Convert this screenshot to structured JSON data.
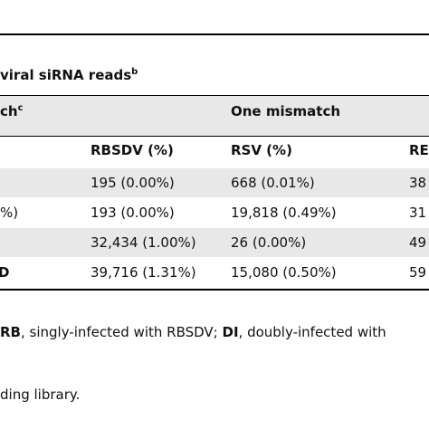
{
  "caption": {
    "text": "viral siRNA reads",
    "sup": "b"
  },
  "group_headers": [
    {
      "text": "ch",
      "sup": "c"
    },
    {
      "text": "One mismatch"
    }
  ],
  "columns": [
    "RBSDV (%)",
    "RSV (%)",
    "RE"
  ],
  "rows": [
    [
      "195 (0.00%)",
      "668 (0.01%)",
      "38"
    ],
    [
      "%)",
      "193 (0.00%)",
      "19,818 (0.49%)",
      "31"
    ],
    [
      "32,434 (1.00%)",
      "26 (0.00%)",
      "49"
    ],
    [
      "D",
      "39,716 (1.31%)",
      "15,080 (0.50%)",
      "59"
    ]
  ],
  "footnote": [
    {
      "bold": "RB",
      "text": ", singly-infected with RBSDV; "
    },
    {
      "bold": "DI",
      "text": ", doubly-infected with"
    }
  ],
  "footnote_tail": "ding library."
}
